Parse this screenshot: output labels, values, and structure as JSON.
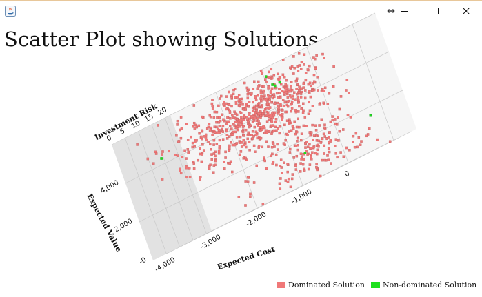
{
  "window": {
    "icon": "java-cup-icon",
    "controls": [
      "resize-arrows-icon",
      "minimize-icon",
      "maximize-icon",
      "close-icon"
    ]
  },
  "page": {
    "title": "Scatter Plot showing Solutions"
  },
  "chart_data": {
    "type": "scatter",
    "title": "",
    "axes": {
      "x": {
        "label": "Expected Cost",
        "ticks": [
          "-4,000",
          "-3,000",
          "-2,000",
          "-1,000",
          "0"
        ],
        "range": [
          -4500,
          0
        ]
      },
      "y": {
        "label": "Expected Value",
        "ticks": [
          "-0",
          "2,000",
          "4,000"
        ],
        "range": [
          -1000,
          5000
        ]
      },
      "z": {
        "label": "Investment Risk",
        "ticks": [
          "0",
          "5",
          "10",
          "15",
          "20"
        ],
        "range": [
          0,
          22
        ]
      }
    },
    "legend": {
      "position": "bottom-right",
      "entries": [
        {
          "name": "Dominated Solution",
          "color": "#f07878"
        },
        {
          "name": "Non-dominated Solution",
          "color": "#1ee01e"
        }
      ]
    },
    "series": [
      {
        "name": "Dominated Solution",
        "color": "#f07878",
        "clusters": [
          {
            "cost_center": -2600,
            "value_center": 3000,
            "risk_center": 11,
            "count": 420
          },
          {
            "cost_center": -1800,
            "value_center": 3400,
            "risk_center": 13,
            "count": 300
          },
          {
            "cost_center": -1300,
            "value_center": 300,
            "risk_center": 8,
            "count": 220
          },
          {
            "cost_center": -3500,
            "value_center": 3600,
            "risk_center": 5,
            "count": 30
          }
        ]
      },
      {
        "name": "Non-dominated Solution",
        "color": "#1ee01e",
        "points": [
          {
            "cost": -2100,
            "value": 4100,
            "risk": 17
          },
          {
            "cost": -2000,
            "value": 4000,
            "risk": 16
          },
          {
            "cost": -1950,
            "value": 4050,
            "risk": 17
          },
          {
            "cost": -3900,
            "value": 3300,
            "risk": 4
          },
          {
            "cost": -1300,
            "value": 400,
            "risk": 6
          },
          {
            "cost": -300,
            "value": 600,
            "risk": 14
          },
          {
            "cost": -2400,
            "value": 4600,
            "risk": 21
          }
        ]
      }
    ]
  }
}
